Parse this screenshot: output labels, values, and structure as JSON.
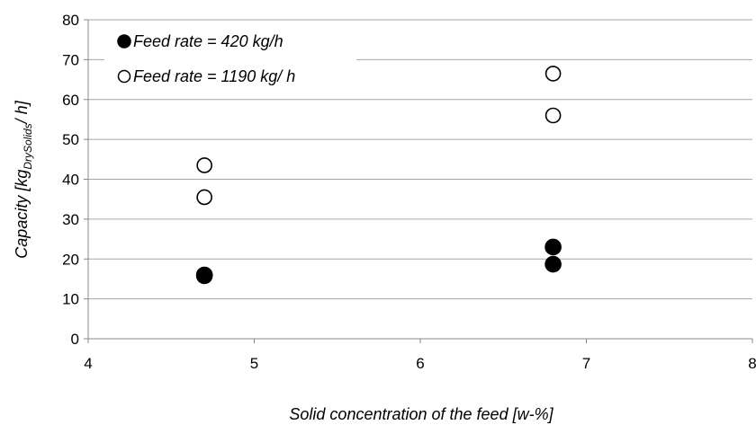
{
  "chart_data": {
    "type": "scatter",
    "title": "",
    "xlabel": "Solid concentration of the feed [w-%]",
    "ylabel": {
      "prefix": "Capacity [kg",
      "subscript": "DrySolids",
      "suffix": "/ h]"
    },
    "xlim": [
      4,
      8
    ],
    "ylim": [
      0,
      80
    ],
    "xticks": [
      4,
      5,
      6,
      7,
      8
    ],
    "yticks": [
      0,
      10,
      20,
      30,
      40,
      50,
      60,
      70,
      80
    ],
    "grid": "horizontal",
    "legend_position": "top-left",
    "series": [
      {
        "name": "Feed rate = 420 kg/h",
        "marker": "filled-circle",
        "color": "#000000",
        "points": [
          {
            "x": 4.7,
            "y": 16
          },
          {
            "x": 4.7,
            "y": 15.8
          },
          {
            "x": 6.8,
            "y": 23
          },
          {
            "x": 6.8,
            "y": 18.7
          }
        ]
      },
      {
        "name": "Feed rate = 1190 kg/ h",
        "marker": "open-circle",
        "color": "#000000",
        "points": [
          {
            "x": 4.7,
            "y": 43.5
          },
          {
            "x": 4.7,
            "y": 35.5
          },
          {
            "x": 6.8,
            "y": 66.5
          },
          {
            "x": 6.8,
            "y": 56
          }
        ]
      }
    ]
  }
}
